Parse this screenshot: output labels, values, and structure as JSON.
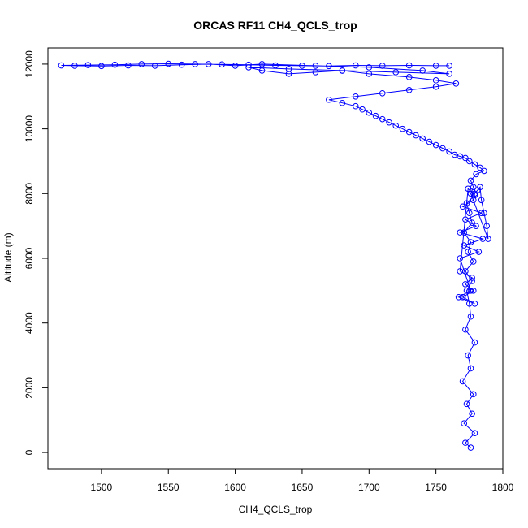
{
  "chart_data": {
    "type": "scatter",
    "title": "ORCAS RF11 CH4_QCLS_trop",
    "xlabel": "CH4_QCLS_trop",
    "ylabel": "Altitude (m)",
    "xlim": [
      1460,
      1800
    ],
    "ylim": [
      -500,
      12500
    ],
    "x_ticks": [
      1500,
      1550,
      1600,
      1650,
      1700,
      1750,
      1800
    ],
    "y_ticks": [
      0,
      2000,
      4000,
      6000,
      8000,
      10000,
      12000
    ],
    "x_tick_labels": [
      "1500",
      "1550",
      "1600",
      "1650",
      "1700",
      "1750",
      "1800"
    ],
    "y_tick_labels": [
      "0",
      "2000",
      "4000",
      "6000",
      "8000",
      "10000",
      "12000"
    ],
    "grid": false,
    "legend": "none",
    "marker": "open-circle",
    "series": [
      {
        "color": "#0000ff",
        "style": "points-and-lines",
        "x": [
          1776,
          1772,
          1779,
          1771,
          1777,
          1773,
          1778,
          1770,
          1776,
          1774,
          1779,
          1772,
          1776,
          1775,
          1773,
          1777,
          1772,
          1778,
          1774,
          1776,
          1771,
          1777,
          1775,
          1773,
          1779,
          1774,
          1768,
          1777,
          1772,
          1778,
          1770,
          1779,
          1767,
          1776,
          1768,
          1782,
          1771,
          1785,
          1768,
          1780,
          1772,
          1784,
          1770,
          1778,
          1779,
          1781,
          1783,
          1784,
          1786,
          1788,
          1789,
          1776,
          1778,
          1776,
          1780,
          1786,
          1783,
          1779,
          1775,
          1772,
          1768,
          1764,
          1760,
          1755,
          1750,
          1745,
          1740,
          1735,
          1730,
          1725,
          1720,
          1715,
          1710,
          1705,
          1700,
          1695,
          1690,
          1680,
          1670,
          1690,
          1710,
          1730,
          1750,
          1765,
          1750,
          1730,
          1700,
          1680,
          1660,
          1640,
          1620,
          1610,
          1640,
          1680,
          1720,
          1760,
          1740,
          1700,
          1660,
          1620,
          1600,
          1580,
          1560,
          1540,
          1520,
          1500,
          1480,
          1470,
          1490,
          1510,
          1530,
          1550,
          1570,
          1590,
          1610,
          1630,
          1650,
          1670,
          1690,
          1710,
          1730,
          1750,
          1760
        ],
        "y": [
          150,
          300,
          600,
          900,
          1200,
          1500,
          1800,
          2200,
          2600,
          3000,
          3400,
          3800,
          4200,
          4600,
          5000,
          5300,
          5600,
          5900,
          6200,
          6500,
          6800,
          7100,
          7400,
          7700,
          7950,
          8150,
          5600,
          5400,
          5200,
          5000,
          4800,
          4600,
          4800,
          5000,
          6000,
          6200,
          6400,
          6600,
          6800,
          7000,
          7200,
          7400,
          7600,
          7800,
          8000,
          8100,
          8200,
          7800,
          7400,
          7000,
          6600,
          8000,
          8200,
          8400,
          8600,
          8700,
          8800,
          8900,
          9000,
          9100,
          9150,
          9200,
          9300,
          9400,
          9500,
          9600,
          9700,
          9800,
          9900,
          10000,
          10100,
          10200,
          10300,
          10400,
          10500,
          10600,
          10700,
          10800,
          10900,
          11000,
          11100,
          11200,
          11300,
          11400,
          11500,
          11600,
          11700,
          11800,
          11750,
          11700,
          11800,
          11900,
          11850,
          11800,
          11750,
          11700,
          11800,
          11900,
          11950,
          12000,
          11950,
          12000,
          11980,
          11950,
          11960,
          11940,
          11950,
          11960,
          11970,
          11980,
          12000,
          12010,
          12000,
          11990,
          11980,
          11960,
          11950,
          11940,
          11960,
          11950,
          11960,
          11950,
          11950
        ]
      }
    ]
  }
}
